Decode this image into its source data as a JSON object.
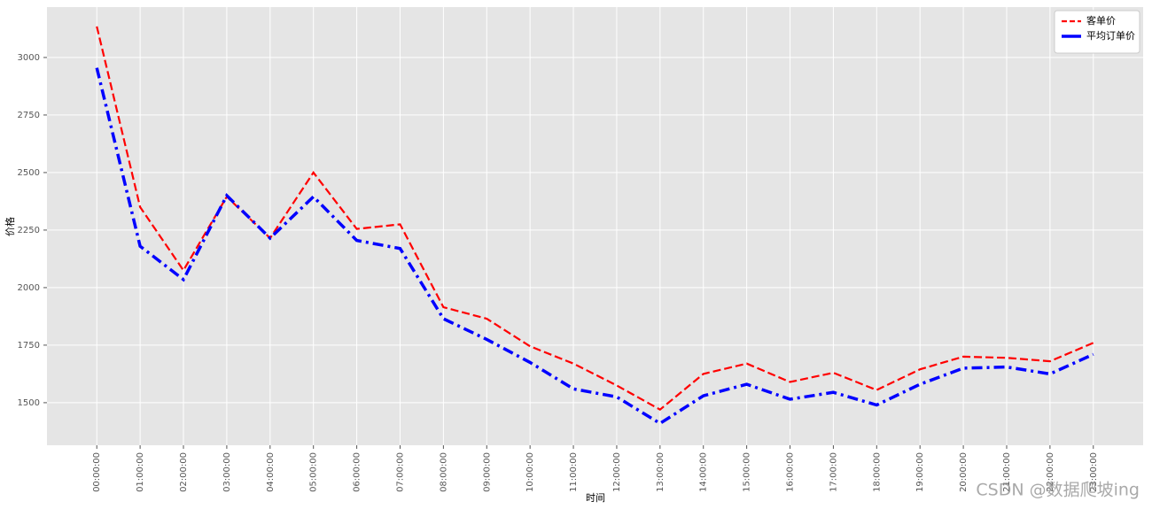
{
  "chart_data": {
    "type": "line",
    "xlabel": "时间",
    "ylabel": "价格",
    "categories": [
      "00:00:00",
      "01:00:00",
      "02:00:00",
      "03:00:00",
      "04:00:00",
      "05:00:00",
      "06:00:00",
      "07:00:00",
      "08:00:00",
      "09:00:00",
      "10:00:00",
      "11:00:00",
      "12:00:00",
      "13:00:00",
      "14:00:00",
      "15:00:00",
      "16:00:00",
      "17:00:00",
      "18:00:00",
      "19:00:00",
      "20:00:00",
      "21:00:00",
      "22:00:00",
      "23:00:00"
    ],
    "series": [
      {
        "name": "客单价",
        "color": "#ff0000",
        "dash": "dashed",
        "values": [
          3135,
          2350,
          2075,
          2395,
          2215,
          2500,
          2255,
          2275,
          1915,
          1865,
          1745,
          1670,
          1575,
          1470,
          1625,
          1670,
          1590,
          1630,
          1555,
          1645,
          1700,
          1695,
          1680,
          1760
        ]
      },
      {
        "name": "平均订单价",
        "color": "#0000ff",
        "dash": "dashdot",
        "values": [
          2955,
          2180,
          2035,
          2400,
          2215,
          2395,
          2205,
          2170,
          1865,
          1775,
          1675,
          1560,
          1525,
          1410,
          1530,
          1580,
          1515,
          1545,
          1490,
          1580,
          1650,
          1655,
          1625,
          1710
        ]
      }
    ],
    "ylim": [
      1315,
      3219
    ],
    "yticks": [
      1500,
      1750,
      2000,
      2250,
      2500,
      2750,
      3000
    ],
    "grid": true,
    "legend": "upper right",
    "watermark": "CSDN @数据爬坡ing"
  }
}
